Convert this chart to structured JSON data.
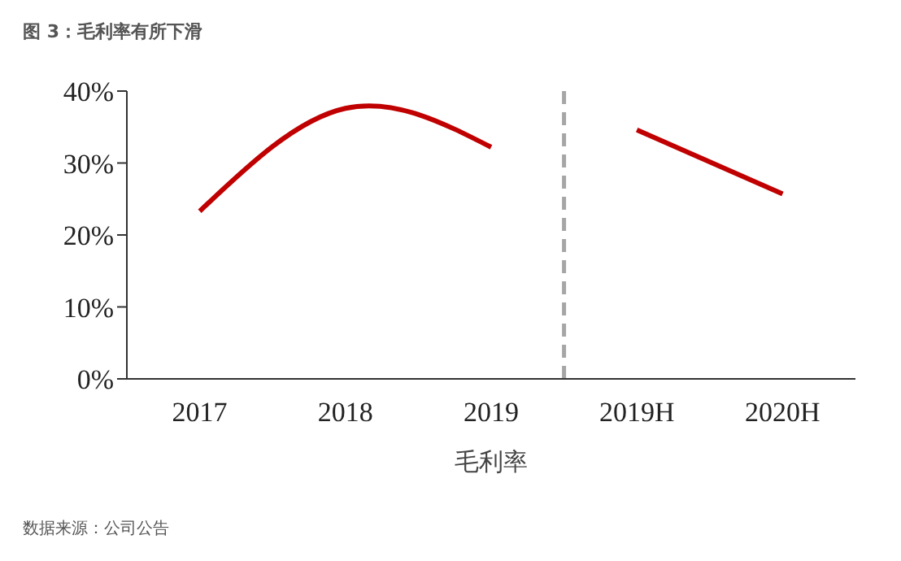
{
  "chart_data": {
    "type": "line",
    "title": "图 3：毛利率有所下滑",
    "xlabel": "毛利率",
    "annotations": [
      "数据来源：公司公告"
    ],
    "categories": [
      "2017",
      "2018",
      "2019",
      "2019H",
      "2020H"
    ],
    "series": [
      {
        "color": "#c00000",
        "values": [
          23.3,
          37.6,
          32.2,
          null,
          null
        ]
      },
      {
        "color": "#c00000",
        "values": [
          null,
          null,
          null,
          34.6,
          25.7
        ]
      }
    ],
    "ylim": [
      0,
      40
    ],
    "yticks": [
      {
        "value": 0,
        "label": "0%"
      },
      {
        "value": 10,
        "label": "10%"
      },
      {
        "value": 20,
        "label": "20%"
      },
      {
        "value": 30,
        "label": "30%"
      },
      {
        "value": 40,
        "label": "40%"
      }
    ],
    "grid": false,
    "legend": false,
    "marker": "none",
    "line_style": "solid"
  }
}
